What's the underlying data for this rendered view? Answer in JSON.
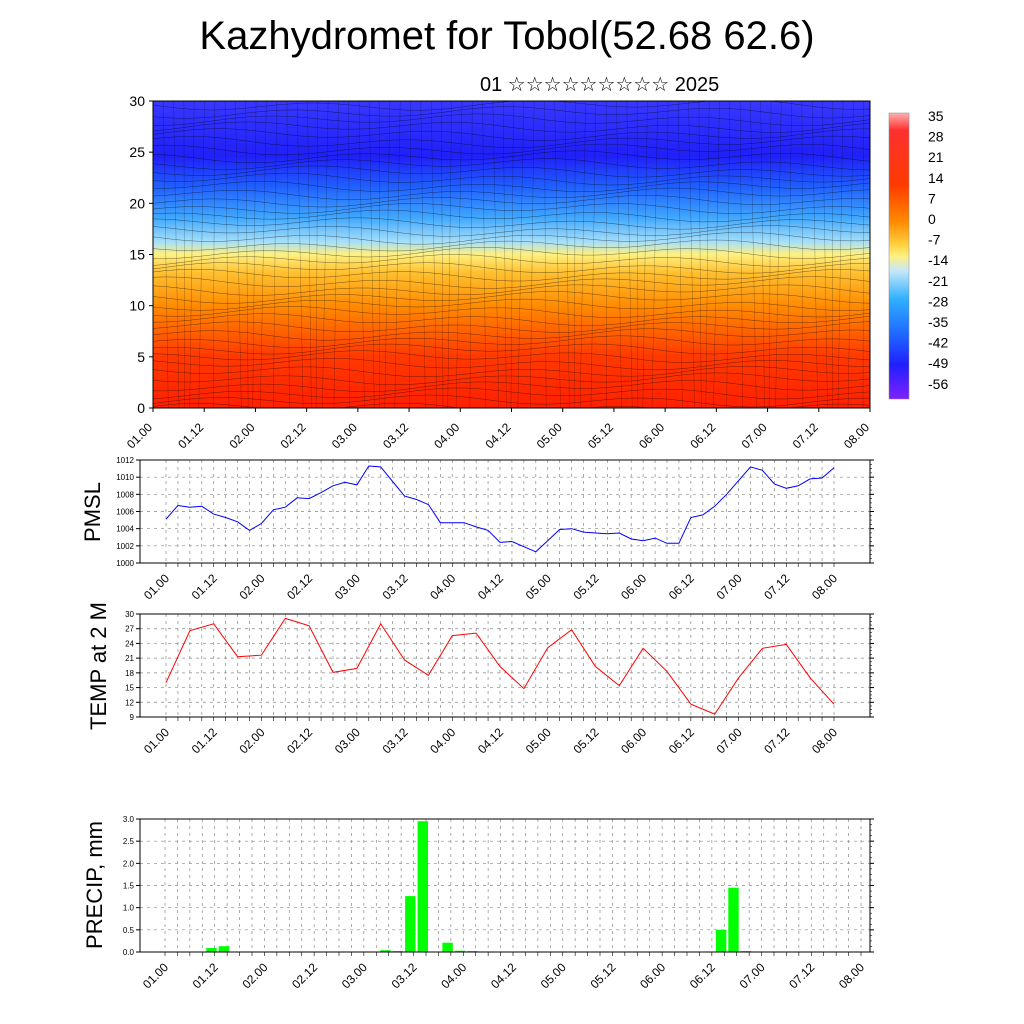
{
  "title": "Kazhydromet for Tobol(52.68 62.6)",
  "subtitle": "01 ☆☆☆☆☆☆☆☆☆ 2025",
  "time_ticks": [
    "01.00",
    "01.12",
    "02.00",
    "02.12",
    "03.00",
    "03.12",
    "04.00",
    "04.12",
    "05.00",
    "05.12",
    "06.00",
    "06.12",
    "07.00",
    "07.12",
    "08.00"
  ],
  "colors": {
    "pmsl_line": "#0000ff",
    "temp_line": "#ff0000",
    "precip_bar": "#00ff00"
  },
  "chart_data": [
    {
      "type": "heatmap",
      "title": "",
      "ylabel": "",
      "xlim": [
        0,
        7
      ],
      "ylim": [
        0,
        30
      ],
      "y_ticks": [
        0,
        5,
        10,
        15,
        20,
        25,
        30
      ],
      "colorbar_labels": [
        "35",
        "28",
        "21",
        "14",
        "7",
        "0",
        "-7",
        "-14",
        "-21",
        "-28",
        "-35",
        "-42",
        "-49",
        "-56"
      ],
      "overlay": "wind streamlines",
      "levels": [
        {
          "y": 0,
          "value": 20
        },
        {
          "y": 5,
          "value": 10
        },
        {
          "y": 10,
          "value": -2
        },
        {
          "y": 15,
          "value": -14
        },
        {
          "y": 17,
          "value": -25
        },
        {
          "y": 20,
          "value": -40
        },
        {
          "y": 25,
          "value": -56
        },
        {
          "y": 30,
          "value": -50
        }
      ]
    },
    {
      "type": "line",
      "ylabel": "PMSL",
      "ylim": [
        1000,
        1012
      ],
      "y_ticks": [
        1000,
        1002,
        1004,
        1006,
        1008,
        1010,
        1012
      ],
      "series": [
        {
          "x": [
            0,
            0.125,
            0.25,
            0.375,
            0.5,
            0.625,
            0.75,
            0.875,
            1,
            1.125,
            1.25,
            1.375,
            1.5,
            1.625,
            1.75,
            1.875,
            2,
            2.125,
            2.25,
            2.375,
            2.5,
            2.625,
            2.75,
            2.875,
            3,
            3.125,
            3.25,
            3.375,
            3.5,
            3.625,
            3.75,
            3.875,
            4,
            4.125,
            4.25,
            4.375,
            4.5,
            4.625,
            4.75,
            4.875,
            5,
            5.125,
            5.25,
            5.375,
            5.5,
            5.625,
            5.75,
            5.875,
            6,
            6.125,
            6.25,
            6.375,
            6.5,
            6.625,
            6.75,
            6.875,
            7
          ],
          "values": [
            1005.1,
            1006.7,
            1006.5,
            1006.6,
            1005.7,
            1005.3,
            1004.8,
            1003.8,
            1004.6,
            1006.2,
            1006.5,
            1007.6,
            1007.5,
            1008.2,
            1009.0,
            1009.4,
            1009.1,
            1011.3,
            1011.2,
            1009.5,
            1007.8,
            1007.4,
            1006.8,
            1004.7,
            1004.7,
            1004.7,
            1004.2,
            1003.8,
            1002.4,
            1002.5,
            1001.9,
            1001.3,
            1002.6,
            1003.9,
            1004.0,
            1003.6,
            1003.5,
            1003.4,
            1003.5,
            1002.8,
            1002.6,
            1002.9,
            1002.3,
            1002.3,
            1005.3,
            1005.6,
            1006.6,
            1008.0,
            1009.6,
            1011.2,
            1010.8,
            1009.2,
            1008.7,
            1009.0,
            1009.8,
            1009.9,
            1011.1
          ]
        }
      ]
    },
    {
      "type": "line",
      "ylabel": "TEMP at 2 M",
      "ylim": [
        9,
        30
      ],
      "y_ticks": [
        9,
        12,
        15,
        18,
        21,
        24,
        27,
        30
      ],
      "series": [
        {
          "x": [
            0,
            0.25,
            0.5,
            0.75,
            1,
            1.25,
            1.5,
            1.75,
            2,
            2.25,
            2.5,
            2.75,
            3,
            3.25,
            3.5,
            3.75,
            4,
            4.25,
            4.5,
            4.75,
            5,
            5.25,
            5.5,
            5.75,
            6,
            6.25,
            6.5,
            6.75,
            7
          ],
          "values": [
            16.0,
            26.6,
            28.0,
            21.3,
            21.6,
            29.1,
            27.6,
            18.1,
            18.9,
            28.0,
            20.6,
            17.5,
            25.6,
            26.1,
            19.3,
            14.8,
            23.1,
            26.8,
            19.3,
            15.4,
            23.0,
            18.3,
            11.6,
            9.6,
            17.0,
            23.0,
            23.8,
            17.0,
            11.6
          ]
        }
      ]
    },
    {
      "type": "bar",
      "ylabel": "PRECIP, mm",
      "ylim": [
        0,
        3
      ],
      "y_ticks": [
        "0.0",
        "0.5",
        "1.0",
        "1.5",
        "2.0",
        "2.5",
        "3.0"
      ],
      "bar_width_days": 0.125,
      "series": [
        {
          "x": [
            0.375,
            0.5,
            1.75,
            2.125,
            2.25,
            2.375,
            2.5,
            2.75,
            2.875,
            3.0,
            5.5,
            5.625,
            5.75
          ],
          "values": [
            0.09,
            0.13,
            0.01,
            0.04,
            0.02,
            1.26,
            2.95,
            0.21,
            0.03,
            0.02,
            0.5,
            1.45,
            0.02
          ]
        }
      ]
    }
  ]
}
